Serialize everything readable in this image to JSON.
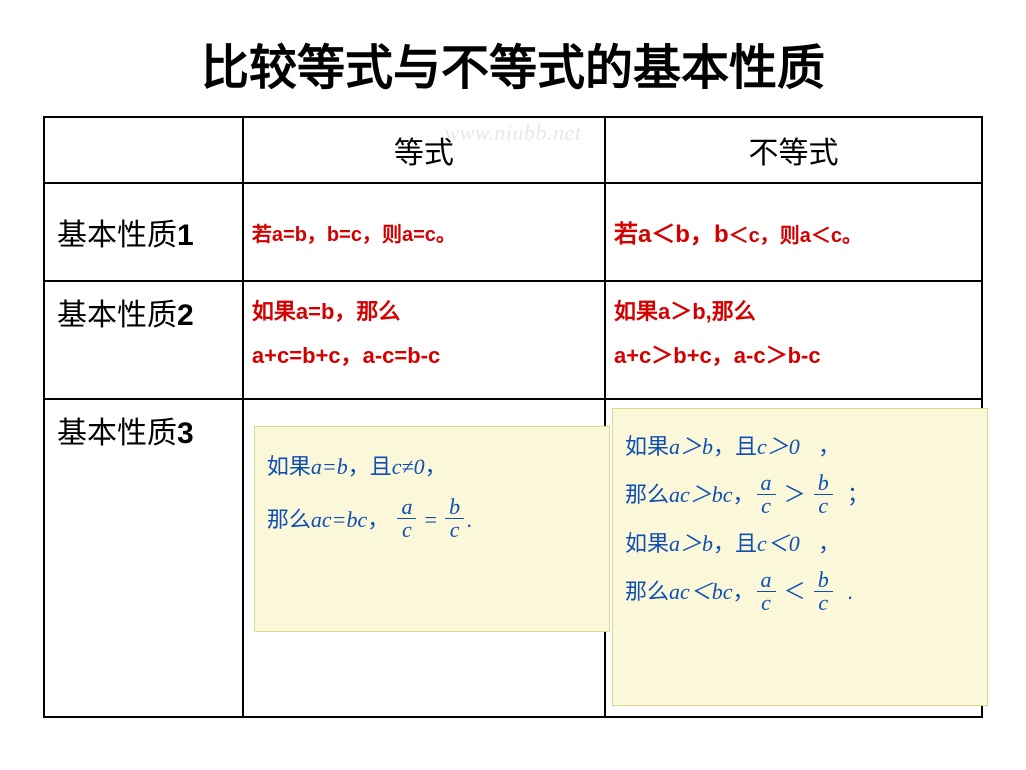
{
  "title": "比较等式与不等式的基本性质",
  "watermark": "www.niubb.net",
  "colors": {
    "red": "#d40000",
    "blue": "#0f4fb3",
    "yellow_bg": "#fbf8d9",
    "yellow_border": "#dcd98f",
    "black": "#000000",
    "background": "#ffffff",
    "watermark": "#e8e8e8"
  },
  "typography": {
    "title_fontsize": 48,
    "header_fontsize": 30,
    "rowlabel_fontsize": 30,
    "body_fontsize": 22,
    "yellow_fontsize": 22,
    "title_weight": 900
  },
  "table": {
    "headers": {
      "blank": "",
      "col_eq": "等式",
      "col_ineq": "不等式"
    },
    "row_labels": {
      "r1_prefix": "基本性质",
      "r1_num": "1",
      "r2_prefix": "基本性质",
      "r2_num": "2",
      "r3_prefix": "基本性质",
      "r3_num": "3"
    },
    "row1": {
      "eq": "若a=b，b=c，则a=c。",
      "ineq": {
        "p1": "若a＜b，b",
        "p2": "＜c，则a＜c。"
      }
    },
    "row2": {
      "eq_line1": "如果a=b，那么",
      "eq_line2": "a+c=b+c，a-c=b-c",
      "ineq_line1": "如果a＞b,那么",
      "ineq_line2": "a+c＞b+c，a-c＞b-c"
    },
    "row3": {
      "eq": {
        "line1_prefix": "如果",
        "line1_expr1": "a=b",
        "line1_mid": "，且",
        "line1_expr2": "c≠0",
        "line1_tail": "，",
        "line2_prefix": "那么",
        "line2_expr1": "ac=bc",
        "line2_mid": "，",
        "frac1_num": "a",
        "frac1_den": "c",
        "frac_eq": "=",
        "frac2_num": "b",
        "frac2_den": "c",
        "tail": "."
      },
      "ineq": {
        "l1_prefix": "如果",
        "l1_expr1": "a＞b",
        "l1_mid": "，且",
        "l1_expr2": "c＞0",
        "l1_tail": "，",
        "l2_prefix": "那么",
        "l2_expr1": "ac＞bc",
        "l2_comma": "，",
        "l2_frac1_num": "a",
        "l2_frac1_den": "c",
        "l2_op": "＞",
        "l2_frac2_num": "b",
        "l2_frac2_den": "c",
        "l2_tail": "；",
        "l3_prefix": "如果",
        "l3_expr1": "a＞b",
        "l3_mid": "，且",
        "l3_expr2": "c＜0",
        "l3_tail": "，",
        "l4_prefix": "那么",
        "l4_expr1": "ac＜bc",
        "l4_comma": "，",
        "l4_frac1_num": "a",
        "l4_frac1_den": "c",
        "l4_op": "＜",
        "l4_frac2_num": "b",
        "l4_frac2_den": "c",
        "l4_tail": "."
      }
    }
  }
}
